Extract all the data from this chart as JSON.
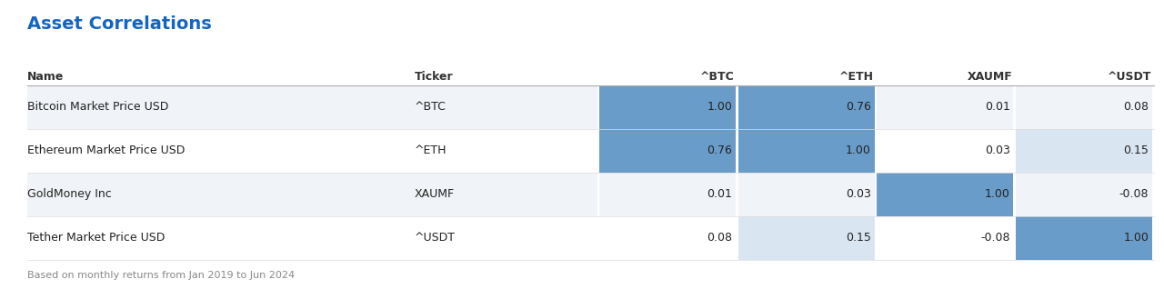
{
  "title": "Asset Correlations",
  "title_color": "#1565C0",
  "footnote": "Based on monthly returns from Jan 2019 to Jun 2024",
  "col_headers": [
    "Name",
    "Ticker",
    "^BTC",
    "^ETH",
    "XAUMF",
    "^USDT"
  ],
  "rows": [
    {
      "name": "Bitcoin Market Price USD",
      "ticker": "^BTC",
      "values": [
        1.0,
        0.76,
        0.01,
        0.08
      ]
    },
    {
      "name": "Ethereum Market Price USD",
      "ticker": "^ETH",
      "values": [
        0.76,
        1.0,
        0.03,
        0.15
      ]
    },
    {
      "name": "GoldMoney Inc",
      "ticker": "XAUMF",
      "values": [
        0.01,
        0.03,
        1.0,
        -0.08
      ]
    },
    {
      "name": "Tether Market Price USD",
      "ticker": "^USDT",
      "values": [
        0.08,
        0.15,
        -0.08,
        1.0
      ]
    }
  ],
  "highlight_color_strong": "#6A9CC9",
  "highlight_color_light": "#D9E6F2",
  "bg_color": "#FFFFFF",
  "header_line_color": "#AAAAAA",
  "row_alt_color": "#F0F3F7",
  "row_color": "#FFFFFF",
  "text_color": "#222222",
  "header_text_color": "#333333",
  "figsize": [
    12.8,
    3.18
  ],
  "dpi": 100
}
